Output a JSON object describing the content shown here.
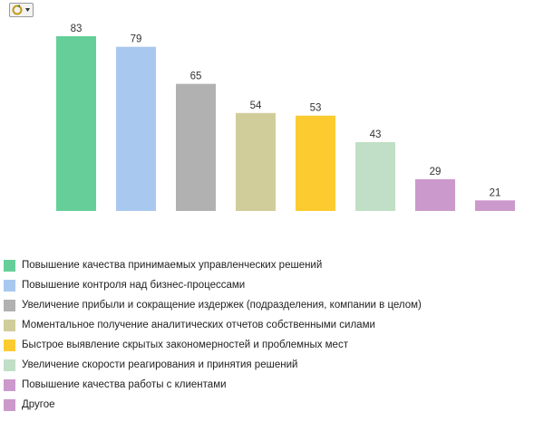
{
  "toolbar": {
    "menu_icon": "chart-options-icon"
  },
  "colors": [
    "#66cf99",
    "#a8c8ef",
    "#b1b1b1",
    "#d0cd9a",
    "#fccb30",
    "#c0dfc6",
    "#cc99cc",
    "#cc99cc"
  ],
  "chart_data": {
    "type": "bar",
    "categories": [
      "Повышение качества принимаемых управленческих решений",
      "Повышение контроля над бизнес-процессами",
      "Увеличение прибыли и сокращение издержек (подразделения, компании в целом)",
      "Моментальное получение аналитических отчетов собственными силами",
      "Быстрое выявление скрытых закономерностей и проблемных мест",
      "Увеличение скорости реагирования и принятия решений",
      "Повышение качества работы с клиентами",
      "Другое"
    ],
    "values": [
      83,
      79,
      65,
      54,
      53,
      43,
      29,
      21
    ],
    "value_labels": [
      "83",
      "79",
      "65",
      "54",
      "53",
      "43",
      "29",
      "21"
    ],
    "title": "",
    "xlabel": "",
    "ylabel": "",
    "ylim": [
      17,
      83
    ],
    "grid": false,
    "legend_position": "bottom"
  }
}
